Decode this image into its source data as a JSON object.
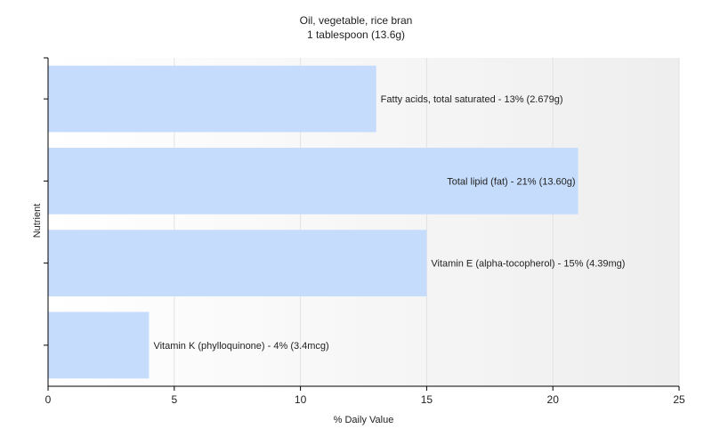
{
  "chart_data": {
    "type": "bar",
    "orientation": "horizontal",
    "title": "Oil, vegetable, rice bran",
    "subtitle": "1 tablespoon (13.6g)",
    "xlabel": "% Daily Value",
    "ylabel": "Nutrient",
    "xlim": [
      0,
      25
    ],
    "xticks": [
      0,
      5,
      10,
      15,
      20,
      25
    ],
    "grid": true,
    "bar_color": "#c6dcfc",
    "categories": [
      "Fatty acids, total saturated",
      "Total lipid (fat)",
      "Vitamin E (alpha-tocopherol)",
      "Vitamin K (phylloquinone)"
    ],
    "values": [
      13,
      21,
      15,
      4
    ],
    "labels": [
      "Fatty acids, total saturated - 13% (2.679g)",
      "Total lipid (fat) - 21% (13.60g)",
      "Vitamin E (alpha-tocopherol) - 15% (4.39mg)",
      "Vitamin K (phylloquinone) - 4% (3.4mcg)"
    ]
  }
}
